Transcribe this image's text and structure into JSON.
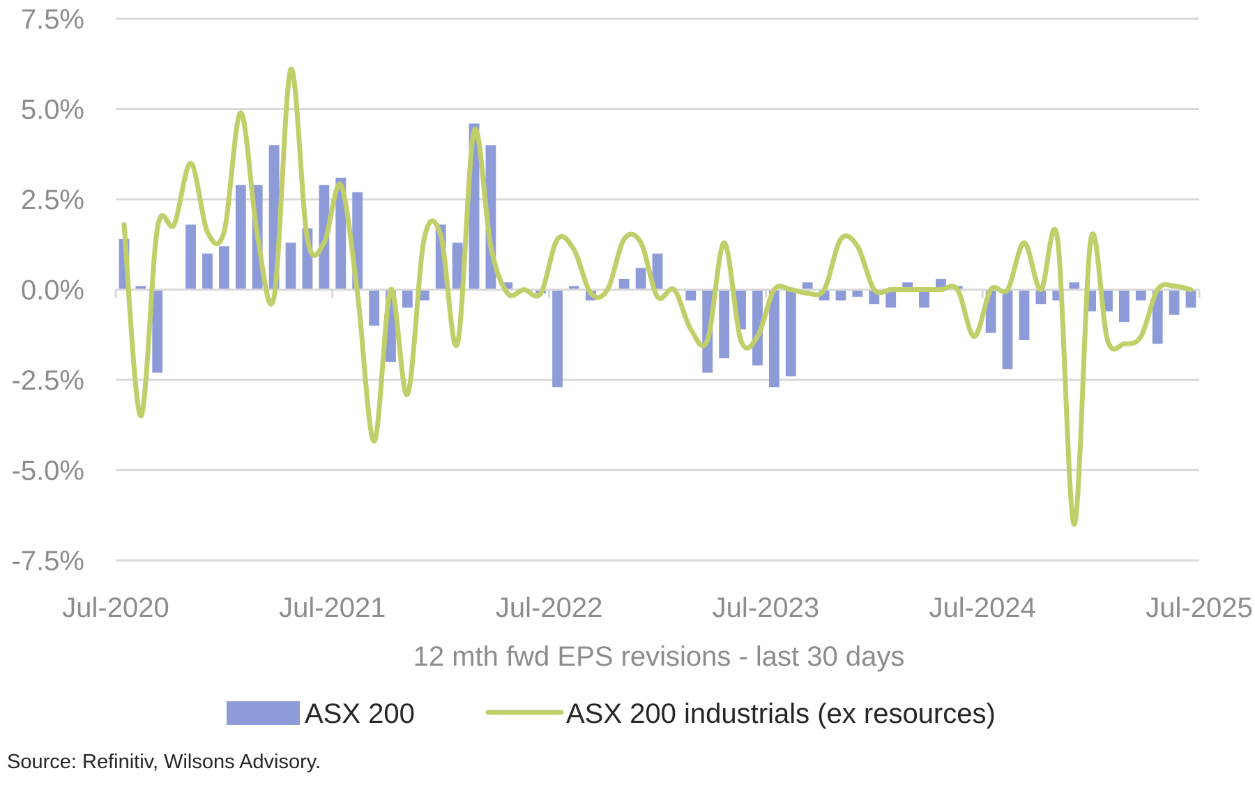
{
  "chart_data": {
    "type": "bar+line",
    "xlabel": "12 mth fwd EPS revisions - last 30 days",
    "ylabel": "",
    "ylim": [
      -7.5,
      7.5
    ],
    "y_ticks": [
      7.5,
      5.0,
      2.5,
      0.0,
      -2.5,
      -5.0,
      -7.5
    ],
    "y_tick_labels": [
      "7.5%",
      "5.0%",
      "2.5%",
      "0.0%",
      "-2.5%",
      "-5.0%",
      "-7.5%"
    ],
    "x_tick_labels": [
      "Jul-2020",
      "Jul-2021",
      "Jul-2022",
      "Jul-2023",
      "Jul-2024",
      "Jul-2025"
    ],
    "x_start": "Jul-2020",
    "x_end": "Jul-2025",
    "grid": "horizontal",
    "legend_position": "bottom",
    "series": [
      {
        "name": "ASX 200",
        "type": "bar",
        "color": "#8e9bd9",
        "values": [
          1.4,
          0.1,
          -2.3,
          0.0,
          1.8,
          1.0,
          1.2,
          2.9,
          2.9,
          4.0,
          1.3,
          1.7,
          2.9,
          3.1,
          2.7,
          -1.0,
          -2.0,
          -0.5,
          -0.3,
          1.8,
          1.3,
          4.6,
          4.0,
          0.2,
          0.0,
          -0.1,
          -2.7,
          0.1,
          -0.3,
          0.0,
          0.3,
          0.6,
          1.0,
          0.0,
          -0.3,
          -2.3,
          -1.9,
          -1.1,
          -2.1,
          -2.7,
          -2.4,
          0.2,
          -0.3,
          -0.3,
          -0.2,
          -0.4,
          -0.5,
          0.2,
          -0.5,
          0.3,
          0.1,
          0.0,
          -1.2,
          -2.2,
          -1.4,
          -0.4,
          -0.3,
          0.2,
          -0.6,
          -0.6,
          -0.9,
          -0.3,
          -1.5,
          -0.7,
          -0.5
        ]
      },
      {
        "name": "ASX 200 industrials (ex resources)",
        "type": "line",
        "color": "#c1cf6a",
        "values": [
          1.8,
          -3.5,
          1.7,
          1.8,
          3.5,
          1.6,
          1.6,
          4.9,
          1.5,
          -0.2,
          6.1,
          1.4,
          1.3,
          2.9,
          -0.1,
          -4.2,
          0.0,
          -2.9,
          1.4,
          1.5,
          -1.5,
          4.4,
          1.2,
          -0.1,
          0.0,
          -0.1,
          1.4,
          1.1,
          -0.1,
          0.0,
          1.4,
          1.3,
          -0.2,
          0.0,
          -1.1,
          -1.4,
          1.3,
          -1.4,
          -1.3,
          0.0,
          0.0,
          -0.1,
          0.0,
          1.4,
          1.2,
          0.0,
          0.0,
          0.0,
          0.0,
          0.0,
          0.0,
          -1.3,
          0.0,
          0.0,
          1.3,
          0.0,
          1.4,
          -6.5,
          1.4,
          -1.4,
          -1.5,
          -1.3,
          0.0,
          0.1,
          0.0
        ]
      }
    ]
  },
  "source": "Source: Refinitiv, Wilsons Advisory."
}
